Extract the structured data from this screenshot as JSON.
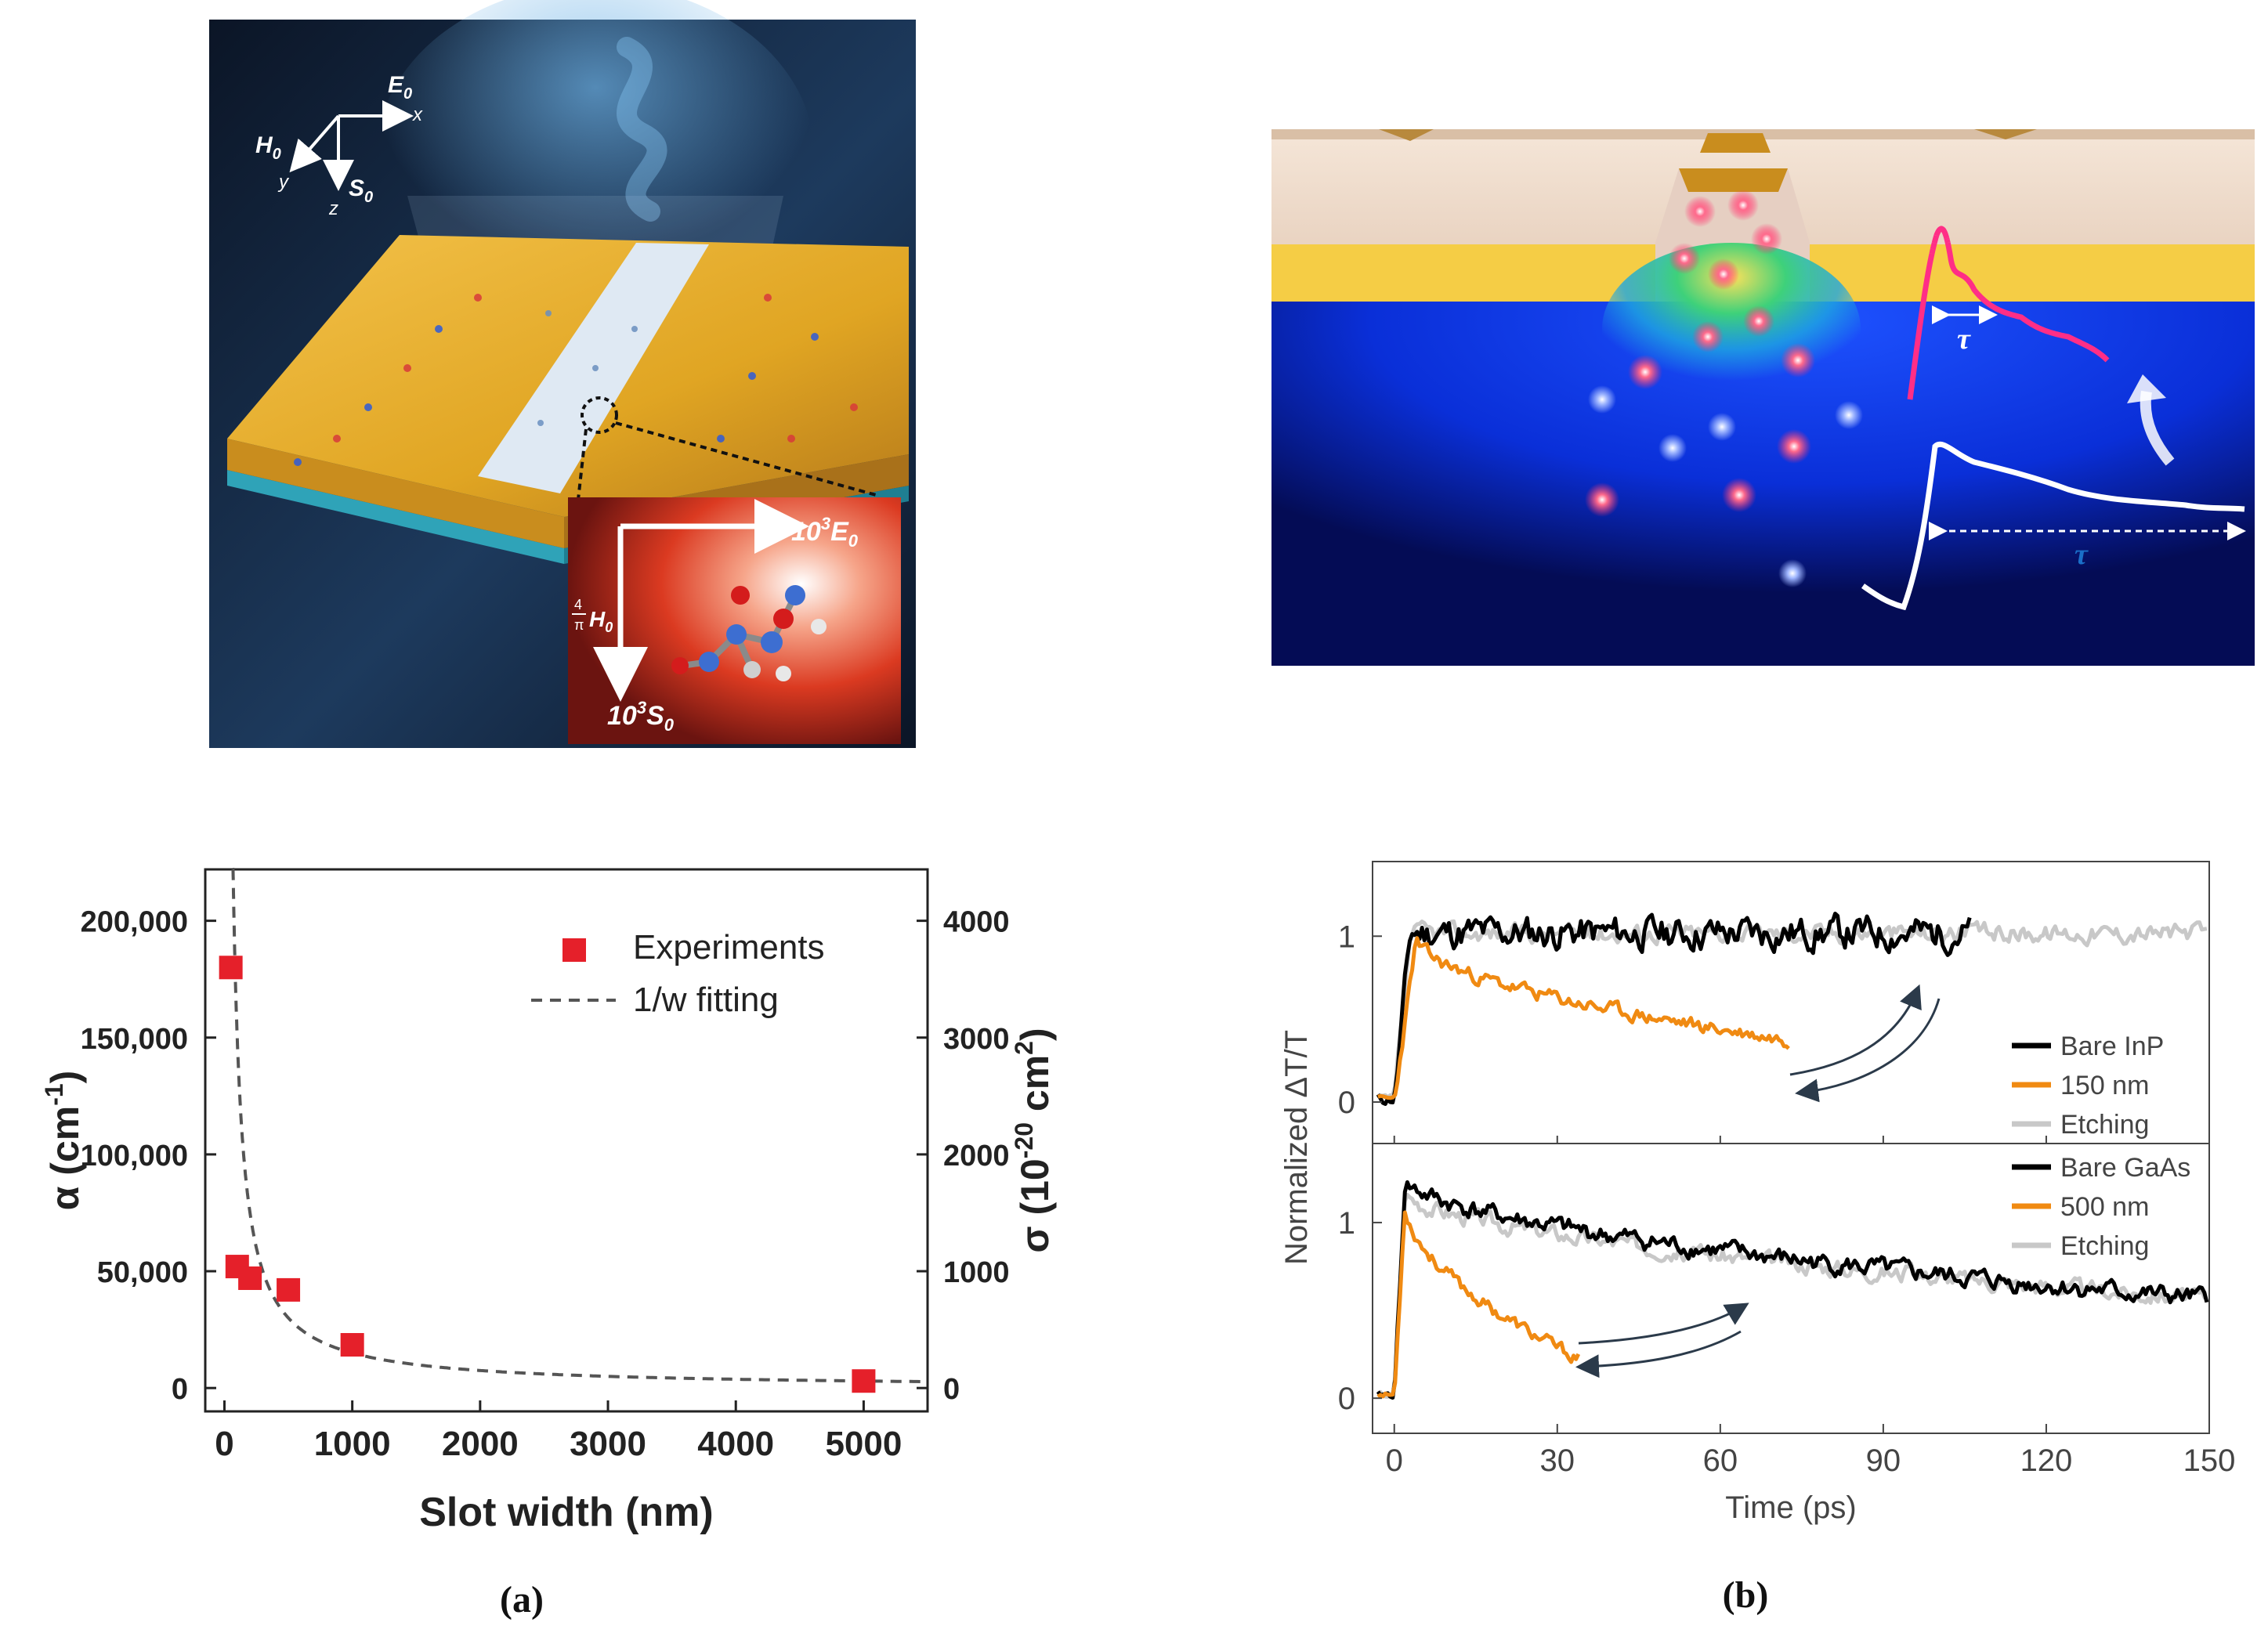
{
  "figure": {
    "panel_a_label": "(a)",
    "panel_b_label": "(b)"
  },
  "illustrations": {
    "left": {
      "axis_e0": "E",
      "axis_x": "x",
      "axis_h0": "H",
      "axis_y": "y",
      "axis_s0": "S",
      "axis_z": "z",
      "sub0": "0",
      "inset_e": "10",
      "inset_e_exp": "3",
      "inset_e_var": "E",
      "inset_s": "10",
      "inset_s_exp": "3",
      "inset_s_var": "S",
      "inset_h_num": "4",
      "inset_h_den": "π",
      "inset_h_var": "H"
    },
    "right": {
      "tau_upper": "τ",
      "tau_lower": "τ"
    }
  },
  "chart_data": [
    {
      "type": "scatter",
      "panel": "(a)",
      "xlabel": "Slot width (nm)",
      "ylabel": "α (cm⁻¹)",
      "ylabel_text": "α (cm",
      "ylabel_sup": "-1",
      "ylabel_close": ")",
      "y2label_text": "σ (10",
      "y2label_sup": "-20",
      "y2label_mid": " cm",
      "y2label_sup2": "2",
      "y2label_close": ")",
      "xlim": [
        -150,
        5500
      ],
      "ylim": [
        -10000,
        222000
      ],
      "y2lim": [
        -200,
        4440
      ],
      "x_ticks": [
        0,
        1000,
        2000,
        3000,
        4000,
        5000
      ],
      "x_tick_labels": [
        "0",
        "1000",
        "2000",
        "3000",
        "4000",
        "5000"
      ],
      "y_ticks": [
        0,
        50000,
        100000,
        150000,
        200000
      ],
      "y_tick_labels": [
        "0",
        "50,000",
        "100,000",
        "150,000",
        "200,000"
      ],
      "y2_ticks": [
        0,
        1000,
        2000,
        3000,
        4000
      ],
      "y2_tick_labels": [
        "0",
        "1000",
        "2000",
        "3000",
        "4000"
      ],
      "legend": {
        "experiments": "Experiments",
        "fit": "1/w fitting",
        "location": "top-right"
      },
      "marker_color": "#e5202a",
      "experiments": {
        "x": [
          50,
          100,
          200,
          500,
          1000,
          5000
        ],
        "y": [
          180000,
          52000,
          47000,
          42000,
          18500,
          3000
        ]
      },
      "fit": {
        "model": "y = A / w",
        "A": 15000000,
        "x_start": 65,
        "x_end": 5500
      }
    },
    {
      "type": "line",
      "panel": "(b)",
      "xlabel": "Time (ps)",
      "ylabel": "Normalized ΔT/T",
      "xlim": [
        -4,
        150
      ],
      "x_ticks": [
        0,
        30,
        60,
        90,
        120,
        150
      ],
      "x_tick_labels": [
        "0",
        "30",
        "60",
        "90",
        "120",
        "150"
      ],
      "colors": {
        "bare": "#000000",
        "patterned": "#f08a12",
        "etching": "#c8c8c8"
      },
      "subplots": [
        {
          "name": "InP",
          "ylim": [
            -0.25,
            1.45
          ],
          "y_ticks": [
            0,
            1
          ],
          "y_tick_labels": [
            "0",
            "1"
          ],
          "series": [
            {
              "name": "Bare InP",
              "role": "bare",
              "x_end": 106,
              "level": 1.02,
              "noise": 0.18,
              "rise": 3,
              "decay": 0,
              "seed": 11
            },
            {
              "name": "150 nm",
              "role": "patterned",
              "x_end": 73,
              "level": 0.98,
              "noise": 0.08,
              "rise": 4,
              "decay": 0.62,
              "seed": 23
            },
            {
              "name": "Etching",
              "role": "etching",
              "x_end": 150,
              "level": 1.02,
              "noise": 0.1,
              "rise": 3,
              "decay": 0,
              "seed": 37
            }
          ],
          "legend_labels": [
            "Bare InP",
            "150 nm",
            "Etching"
          ]
        },
        {
          "name": "GaAs",
          "ylim": [
            -0.2,
            1.45
          ],
          "y_ticks": [
            0,
            1
          ],
          "y_tick_labels": [
            "0",
            "1"
          ],
          "series": [
            {
              "name": "Bare GaAs",
              "role": "bare",
              "x_end": 150,
              "level": 1.25,
              "noise": 0.1,
              "rise": 2,
              "decay": 0.55,
              "seed": 41
            },
            {
              "name": "500 nm",
              "role": "patterned",
              "x_end": 34,
              "level": 1.12,
              "noise": 0.07,
              "rise": 2,
              "decay": 0.8,
              "seed": 53
            },
            {
              "name": "Etching",
              "role": "etching",
              "x_end": 150,
              "level": 1.18,
              "noise": 0.09,
              "rise": 2,
              "decay": 0.52,
              "seed": 67
            }
          ],
          "legend_labels": [
            "Bare GaAs",
            "500 nm",
            "Etching"
          ]
        }
      ]
    }
  ]
}
